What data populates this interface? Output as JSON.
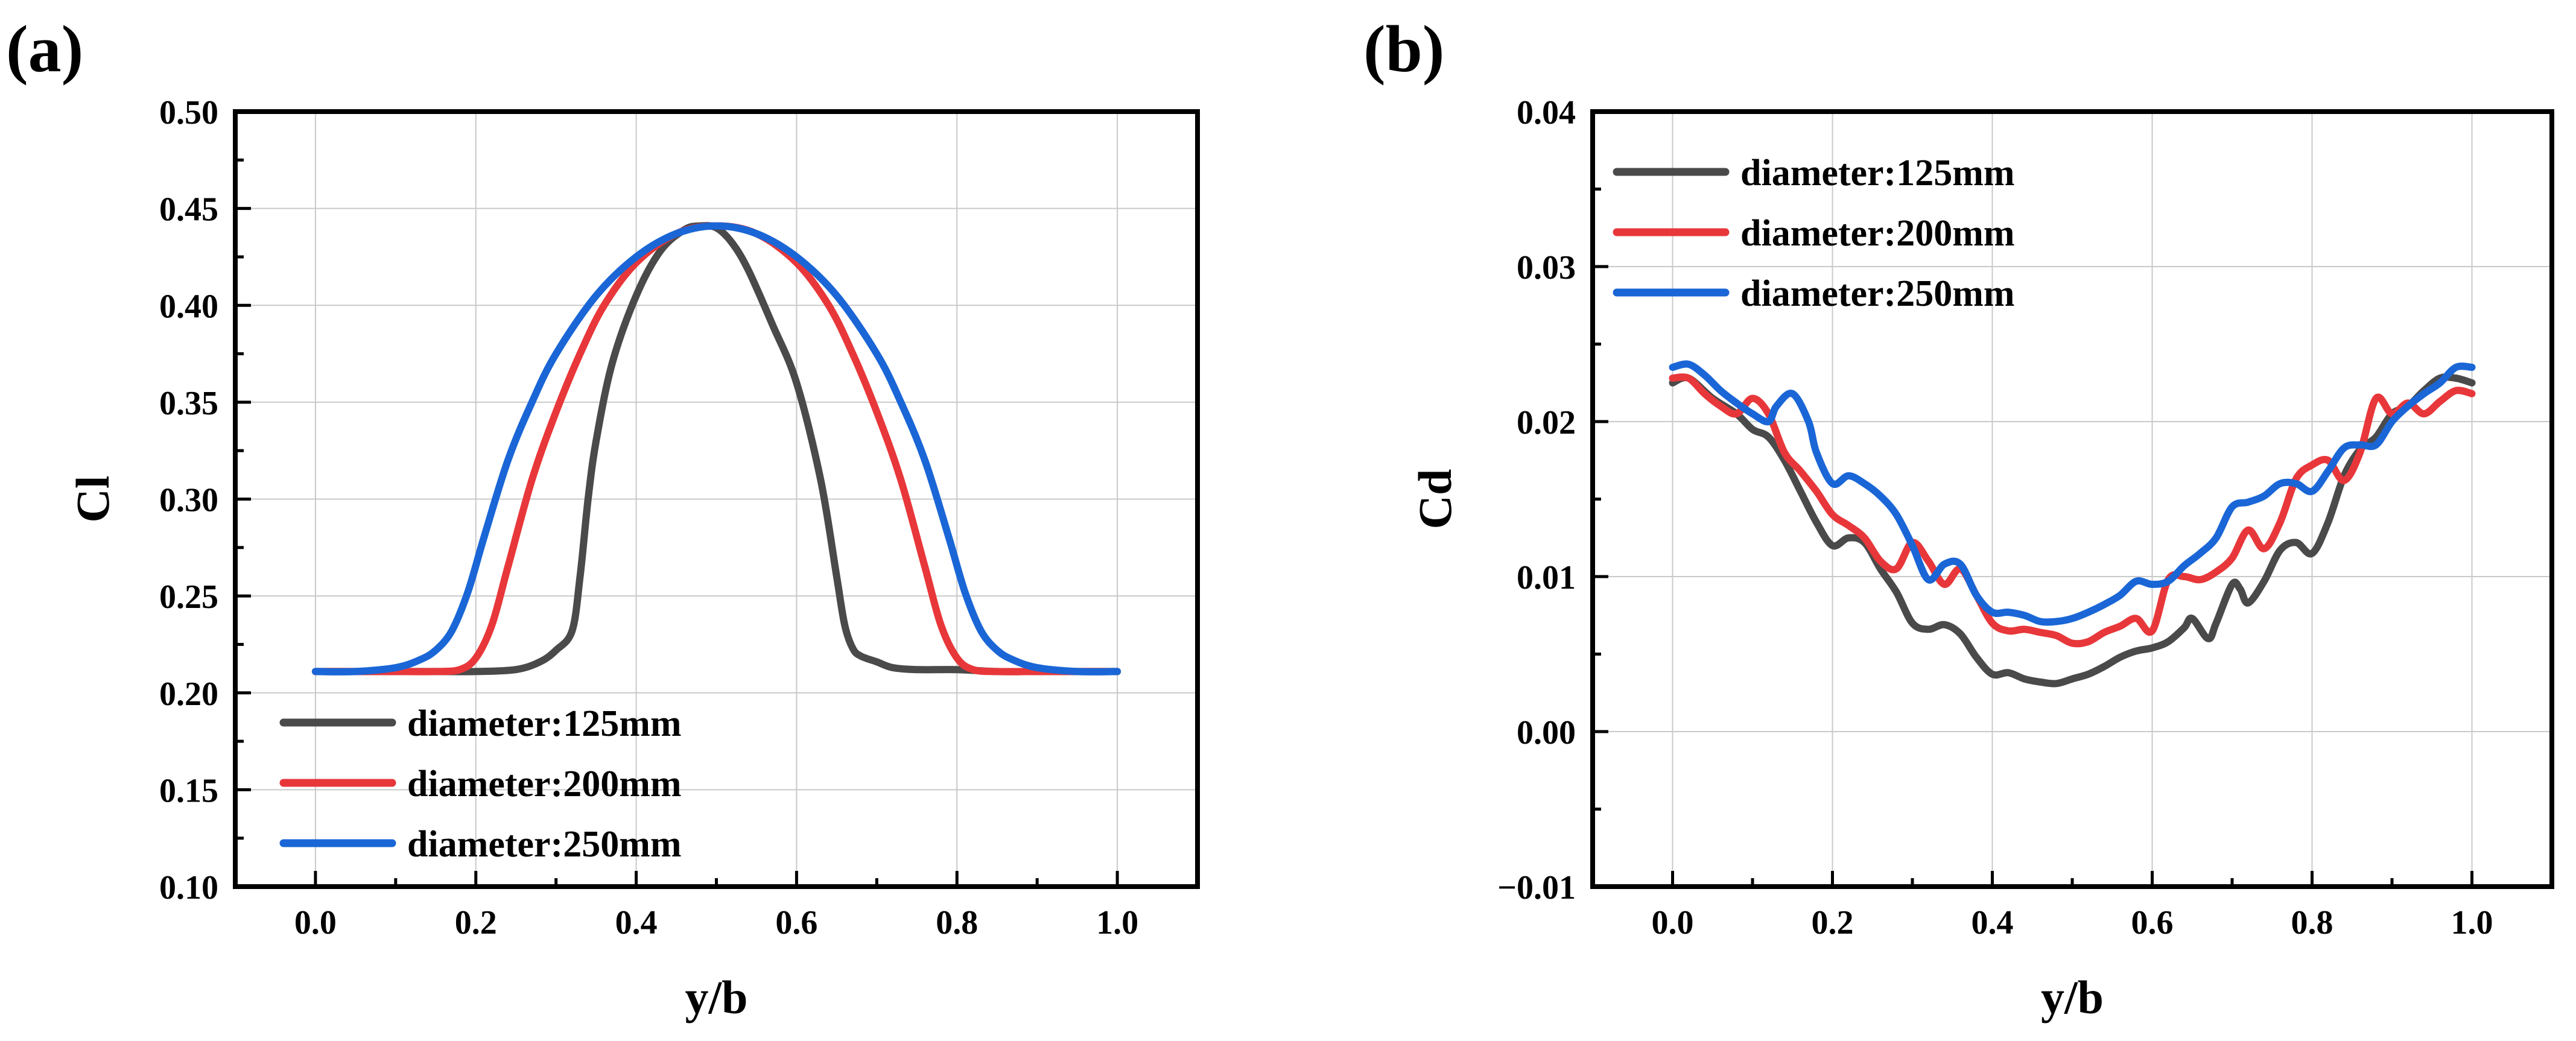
{
  "chart_data": [
    {
      "panel_label": "(a)",
      "type": "line",
      "xlabel": "y/b",
      "ylabel": "Cl",
      "xlim": [
        -0.1,
        1.1
      ],
      "ylim": [
        0.1,
        0.5
      ],
      "xticks": [
        0.0,
        0.2,
        0.4,
        0.6,
        0.8,
        1.0
      ],
      "xtick_labels": [
        "0.0",
        "0.2",
        "0.4",
        "0.6",
        "0.8",
        "1.0"
      ],
      "yticks": [
        0.1,
        0.15,
        0.2,
        0.25,
        0.3,
        0.35,
        0.4,
        0.45,
        0.5
      ],
      "ytick_labels": [
        "0.10",
        "0.15",
        "0.20",
        "0.25",
        "0.30",
        "0.35",
        "0.40",
        "0.45",
        "0.50"
      ],
      "grid": true,
      "legend_position": "bottom-left",
      "series": [
        {
          "name": "diameter:125mm",
          "color": "#4a4a4a",
          "x": [
            0.0,
            0.05,
            0.1,
            0.15,
            0.2,
            0.25,
            0.28,
            0.3,
            0.32,
            0.33,
            0.34,
            0.35,
            0.37,
            0.4,
            0.43,
            0.46,
            0.48,
            0.5,
            0.52,
            0.54,
            0.57,
            0.6,
            0.63,
            0.65,
            0.66,
            0.67,
            0.68,
            0.7,
            0.72,
            0.75,
            0.8,
            0.85,
            0.9,
            0.95,
            1.0
          ],
          "y": [
            0.211,
            0.211,
            0.211,
            0.211,
            0.211,
            0.212,
            0.216,
            0.222,
            0.232,
            0.26,
            0.3,
            0.33,
            0.37,
            0.405,
            0.428,
            0.439,
            0.441,
            0.44,
            0.432,
            0.418,
            0.39,
            0.36,
            0.31,
            0.26,
            0.235,
            0.223,
            0.219,
            0.216,
            0.213,
            0.212,
            0.212,
            0.211,
            0.211,
            0.211,
            0.211
          ]
        },
        {
          "name": "diameter:200mm",
          "color": "#e8373a",
          "x": [
            0.0,
            0.05,
            0.1,
            0.15,
            0.18,
            0.2,
            0.22,
            0.24,
            0.27,
            0.3,
            0.33,
            0.36,
            0.4,
            0.45,
            0.5,
            0.55,
            0.6,
            0.64,
            0.67,
            0.7,
            0.73,
            0.76,
            0.78,
            0.8,
            0.82,
            0.85,
            0.9,
            0.95,
            1.0
          ],
          "y": [
            0.211,
            0.211,
            0.211,
            0.211,
            0.212,
            0.218,
            0.235,
            0.265,
            0.31,
            0.345,
            0.375,
            0.4,
            0.422,
            0.437,
            0.441,
            0.437,
            0.422,
            0.4,
            0.375,
            0.345,
            0.31,
            0.265,
            0.235,
            0.218,
            0.212,
            0.211,
            0.211,
            0.211,
            0.211
          ]
        },
        {
          "name": "diameter:250mm",
          "color": "#1a66d6",
          "x": [
            0.0,
            0.05,
            0.1,
            0.13,
            0.15,
            0.17,
            0.19,
            0.21,
            0.24,
            0.27,
            0.3,
            0.35,
            0.4,
            0.45,
            0.5,
            0.55,
            0.6,
            0.65,
            0.7,
            0.73,
            0.76,
            0.79,
            0.81,
            0.83,
            0.85,
            0.87,
            0.9,
            0.95,
            1.0
          ],
          "y": [
            0.211,
            0.211,
            0.213,
            0.217,
            0.222,
            0.232,
            0.252,
            0.28,
            0.32,
            0.35,
            0.375,
            0.405,
            0.425,
            0.437,
            0.441,
            0.437,
            0.425,
            0.405,
            0.375,
            0.35,
            0.32,
            0.28,
            0.252,
            0.232,
            0.222,
            0.217,
            0.213,
            0.211,
            0.211
          ]
        }
      ]
    },
    {
      "panel_label": "(b)",
      "type": "line",
      "xlabel": "y/b",
      "ylabel": "Cd",
      "xlim": [
        -0.1,
        1.1
      ],
      "ylim": [
        -0.01,
        0.04
      ],
      "xticks": [
        0.0,
        0.2,
        0.4,
        0.6,
        0.8,
        1.0
      ],
      "xtick_labels": [
        "0.0",
        "0.2",
        "0.4",
        "0.6",
        "0.8",
        "1.0"
      ],
      "yticks": [
        -0.01,
        0.0,
        0.01,
        0.02,
        0.03,
        0.04
      ],
      "ytick_labels": [
        "−0.01",
        "0.00",
        "0.01",
        "0.02",
        "0.03",
        "0.04"
      ],
      "grid": true,
      "legend_position": "top-left",
      "series": [
        {
          "name": "diameter:125mm",
          "color": "#4a4a4a",
          "x": [
            0.0,
            0.02,
            0.05,
            0.08,
            0.1,
            0.12,
            0.14,
            0.16,
            0.18,
            0.2,
            0.22,
            0.24,
            0.26,
            0.28,
            0.3,
            0.32,
            0.34,
            0.36,
            0.38,
            0.4,
            0.42,
            0.44,
            0.46,
            0.48,
            0.5,
            0.52,
            0.54,
            0.56,
            0.58,
            0.6,
            0.62,
            0.64,
            0.65,
            0.67,
            0.68,
            0.7,
            0.71,
            0.72,
            0.74,
            0.76,
            0.78,
            0.8,
            0.82,
            0.84,
            0.86,
            0.88,
            0.9,
            0.92,
            0.94,
            0.96,
            0.98,
            1.0
          ],
          "y": [
            0.0225,
            0.0228,
            0.0215,
            0.0205,
            0.0195,
            0.019,
            0.0175,
            0.0155,
            0.0135,
            0.012,
            0.0125,
            0.0122,
            0.0105,
            0.009,
            0.007,
            0.0066,
            0.0069,
            0.0063,
            0.0048,
            0.0037,
            0.0038,
            0.0034,
            0.0032,
            0.0031,
            0.0034,
            0.0037,
            0.0042,
            0.0048,
            0.0052,
            0.0054,
            0.0058,
            0.0067,
            0.0073,
            0.006,
            0.007,
            0.0095,
            0.0092,
            0.0083,
            0.0097,
            0.0117,
            0.0122,
            0.0115,
            0.0135,
            0.0165,
            0.0182,
            0.019,
            0.0205,
            0.021,
            0.022,
            0.0228,
            0.0228,
            0.0225
          ]
        },
        {
          "name": "diameter:200mm",
          "color": "#e8373a",
          "x": [
            0.0,
            0.02,
            0.04,
            0.06,
            0.08,
            0.1,
            0.12,
            0.14,
            0.16,
            0.18,
            0.2,
            0.22,
            0.24,
            0.26,
            0.28,
            0.3,
            0.32,
            0.34,
            0.36,
            0.38,
            0.4,
            0.42,
            0.44,
            0.46,
            0.48,
            0.5,
            0.52,
            0.54,
            0.56,
            0.58,
            0.6,
            0.62,
            0.64,
            0.66,
            0.68,
            0.7,
            0.72,
            0.74,
            0.76,
            0.78,
            0.8,
            0.82,
            0.84,
            0.86,
            0.88,
            0.9,
            0.92,
            0.94,
            0.96,
            0.98,
            1.0
          ],
          "y": [
            0.0228,
            0.0228,
            0.0218,
            0.021,
            0.0205,
            0.0215,
            0.0205,
            0.018,
            0.0168,
            0.0155,
            0.014,
            0.0133,
            0.0125,
            0.011,
            0.0105,
            0.0122,
            0.011,
            0.0095,
            0.0105,
            0.0088,
            0.007,
            0.0065,
            0.0066,
            0.0064,
            0.0062,
            0.0057,
            0.0058,
            0.0064,
            0.0068,
            0.0073,
            0.0065,
            0.0098,
            0.01,
            0.0098,
            0.0103,
            0.0112,
            0.013,
            0.0118,
            0.0135,
            0.0163,
            0.0172,
            0.0175,
            0.0162,
            0.018,
            0.0215,
            0.0205,
            0.0212,
            0.0205,
            0.0213,
            0.022,
            0.0218
          ]
        },
        {
          "name": "diameter:250mm",
          "color": "#1a66d6",
          "x": [
            0.0,
            0.02,
            0.04,
            0.06,
            0.08,
            0.1,
            0.12,
            0.13,
            0.15,
            0.17,
            0.18,
            0.2,
            0.22,
            0.24,
            0.26,
            0.28,
            0.3,
            0.32,
            0.34,
            0.36,
            0.38,
            0.4,
            0.42,
            0.44,
            0.46,
            0.48,
            0.5,
            0.52,
            0.54,
            0.56,
            0.58,
            0.6,
            0.62,
            0.64,
            0.66,
            0.68,
            0.7,
            0.72,
            0.74,
            0.76,
            0.78,
            0.8,
            0.82,
            0.84,
            0.86,
            0.88,
            0.9,
            0.92,
            0.94,
            0.96,
            0.98,
            1.0
          ],
          "y": [
            0.0235,
            0.0237,
            0.023,
            0.022,
            0.0212,
            0.0205,
            0.02,
            0.021,
            0.0218,
            0.02,
            0.018,
            0.016,
            0.0165,
            0.016,
            0.0152,
            0.014,
            0.012,
            0.0098,
            0.0108,
            0.0108,
            0.0088,
            0.0077,
            0.0077,
            0.0075,
            0.0071,
            0.0071,
            0.0073,
            0.0077,
            0.0082,
            0.0088,
            0.0097,
            0.0095,
            0.0097,
            0.0107,
            0.0115,
            0.0125,
            0.0145,
            0.0148,
            0.0152,
            0.016,
            0.016,
            0.0155,
            0.0168,
            0.0183,
            0.0185,
            0.0185,
            0.02,
            0.021,
            0.0218,
            0.0225,
            0.0235,
            0.0235
          ]
        }
      ]
    }
  ]
}
